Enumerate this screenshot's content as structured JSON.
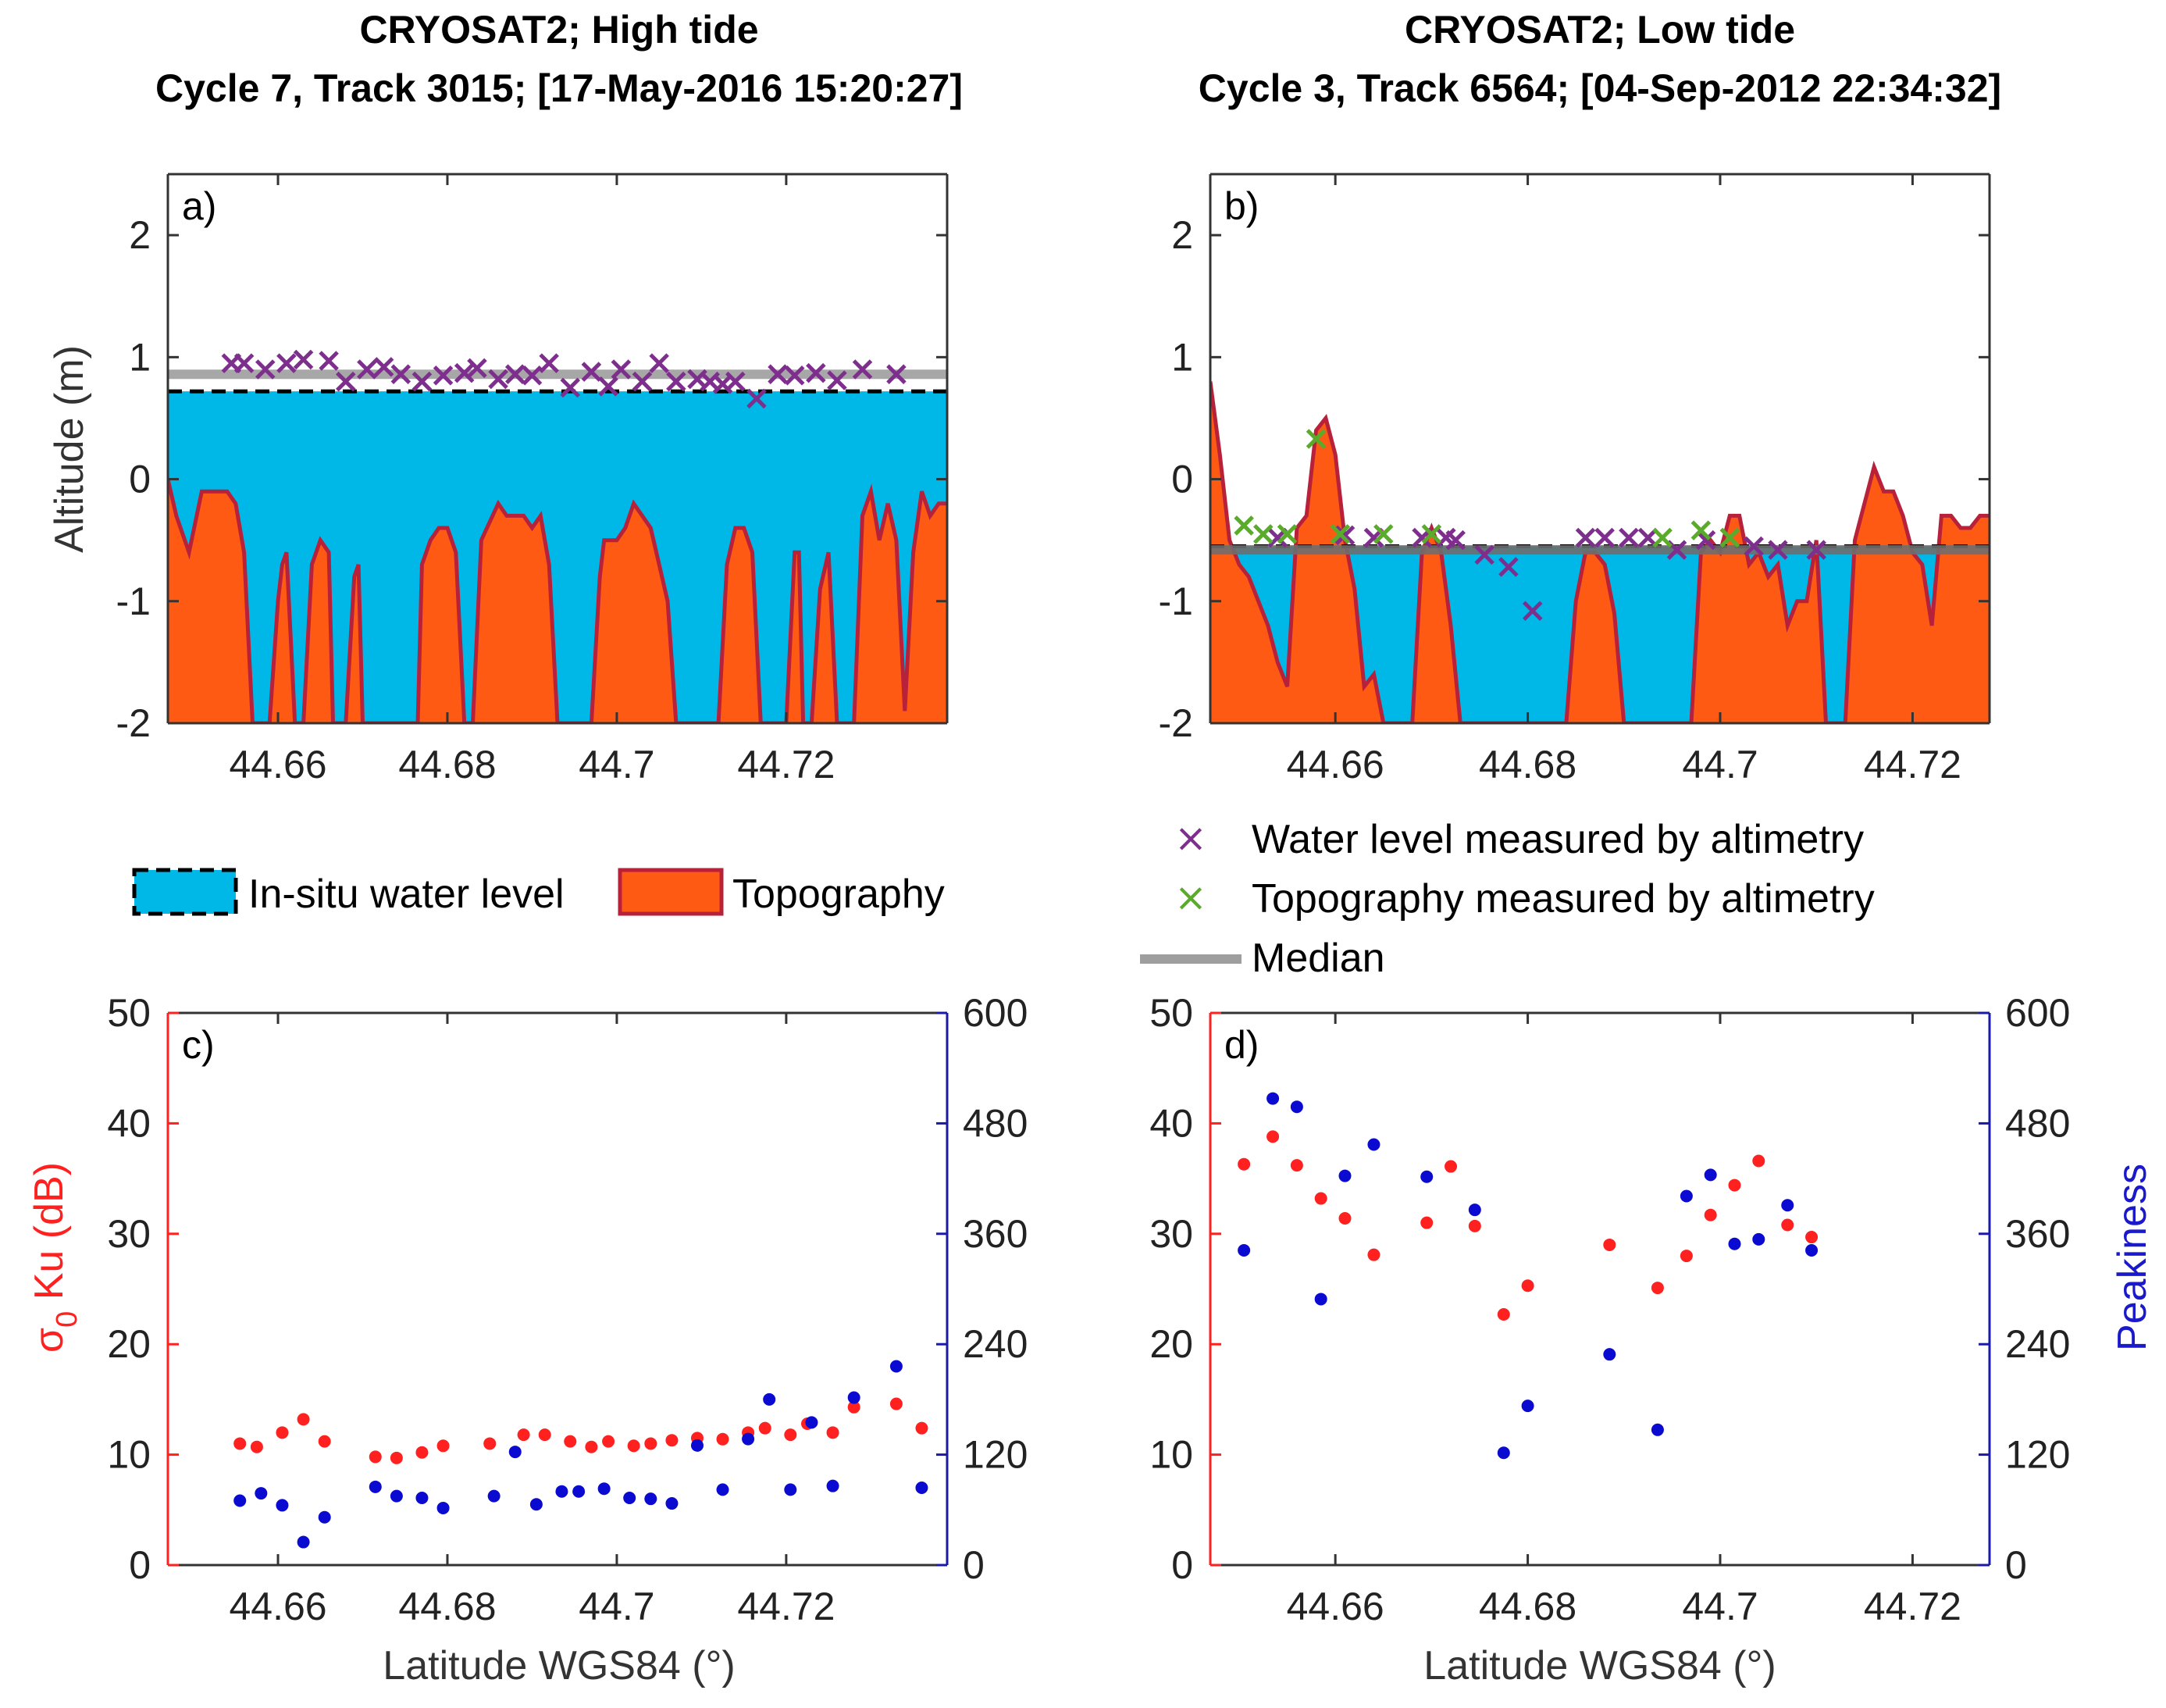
{
  "titles": {
    "a_line1": "CRYOSAT2; High tide",
    "a_line2": "Cycle 7, Track 3015; [17-May-2016 15:20:27]",
    "b_line1": "CRYOSAT2; Low tide",
    "b_line2": "Cycle 3, Track 6564; [04-Sep-2012 22:34:32]"
  },
  "labels": {
    "altitude": "Altitude (m)",
    "sigma_symbol": "σ",
    "sigma_sub": "0",
    "sigma_rest": " Ku (dB)",
    "peakiness": "Peakiness",
    "latitude": "Latitude WGS84 (°)"
  },
  "legend_a": {
    "insitu": "In-situ water level",
    "topography": "Topography"
  },
  "legend_b": {
    "water": "Water level measured by altimetry",
    "topo": "Topography measured by altimetry",
    "median": "Median"
  },
  "colors": {
    "water": "#00b8e8",
    "topo_fill": "#ff5a14",
    "topo_line": "#b8213a",
    "water_marker": "#7e2f8e",
    "topo_marker": "#5aaa2c",
    "median": "#9e9e9e",
    "sigma": "#ff2020",
    "peakiness": "#0a0ad0",
    "right_axis": "#1a1aa6"
  },
  "chart_data": [
    {
      "panel": "a)",
      "type": "area",
      "title": "CRYOSAT2; High tide",
      "subtitle": "Cycle 7, Track 3015; [17-May-2016 15:20:27]",
      "ylabel": "Altitude (m)",
      "xlim": [
        44.647,
        44.739
      ],
      "ylim": [
        -2,
        2.5
      ],
      "xticks": [
        "44.66",
        "44.68",
        "44.7",
        "44.72"
      ],
      "yticks": [
        "-2",
        "-1",
        "0",
        "1",
        "2"
      ],
      "insitu_water_level": 0.72,
      "median": 0.86,
      "topography": {
        "x": [
          44.647,
          44.648,
          44.6495,
          44.651,
          44.653,
          44.654,
          44.655,
          44.656,
          44.657,
          44.658,
          44.659,
          44.66,
          44.6605,
          44.661,
          44.662,
          44.663,
          44.664,
          44.665,
          44.666,
          44.6665,
          44.668,
          44.669,
          44.6695,
          44.67,
          44.671,
          44.672,
          44.673,
          44.674,
          44.675,
          44.676,
          44.6765,
          44.677,
          44.678,
          44.679,
          44.68,
          44.681,
          44.682,
          44.683,
          44.684,
          44.686,
          44.687,
          44.688,
          44.689,
          44.69,
          44.691,
          44.692,
          44.693,
          44.694,
          44.695,
          44.696,
          44.697,
          44.698,
          44.6985,
          44.699,
          44.7,
          44.701,
          44.702,
          44.703,
          44.704,
          44.705,
          44.706,
          44.707,
          44.708,
          44.709,
          44.71,
          44.711,
          44.712,
          44.713,
          44.714,
          44.715,
          44.716,
          44.717,
          44.718,
          44.719,
          44.72,
          44.721,
          44.7215,
          44.722,
          44.723,
          44.724,
          44.725,
          44.726,
          44.727,
          44.728,
          44.729,
          44.73,
          44.731,
          44.732,
          44.733,
          44.734,
          44.735,
          44.736,
          44.737,
          44.738,
          44.739
        ],
        "y": [
          0.0,
          -0.3,
          -0.6,
          -0.1,
          -0.1,
          -0.1,
          -0.2,
          -0.6,
          -2.0,
          -2.0,
          -2.0,
          -1.0,
          -0.7,
          -0.6,
          -2.0,
          -2.0,
          -0.7,
          -0.5,
          -0.6,
          -2.0,
          -2.0,
          -0.8,
          -0.7,
          -2.0,
          -2.0,
          -2.0,
          -2.0,
          -2.0,
          -2.0,
          -2.0,
          -2.0,
          -0.7,
          -0.5,
          -0.4,
          -0.4,
          -0.6,
          -2.0,
          -2.0,
          -0.5,
          -0.2,
          -0.3,
          -0.3,
          -0.3,
          -0.4,
          -0.3,
          -0.7,
          -2.0,
          -2.0,
          -2.0,
          -2.0,
          -2.0,
          -0.8,
          -0.5,
          -0.5,
          -0.5,
          -0.4,
          -0.2,
          -0.3,
          -0.4,
          -0.7,
          -1.0,
          -2.0,
          -2.0,
          -2.0,
          -2.0,
          -2.0,
          -2.0,
          -0.7,
          -0.4,
          -0.4,
          -0.6,
          -2.0,
          -2.0,
          -2.0,
          -2.0,
          -0.6,
          -0.6,
          -2.0,
          -2.0,
          -0.9,
          -0.6,
          -2.0,
          -2.0,
          -2.0,
          -0.3,
          -0.1,
          -0.5,
          -0.2,
          -0.5,
          -1.9,
          -0.6,
          -0.1,
          -0.3,
          -0.2,
          -0.2
        ]
      },
      "water_level_altimetry": {
        "x": [
          44.6545,
          44.656,
          44.6585,
          44.661,
          44.663,
          44.666,
          44.668,
          44.6705,
          44.6725,
          44.6745,
          44.677,
          44.6795,
          44.682,
          44.6835,
          44.686,
          44.688,
          44.69,
          44.692,
          44.6945,
          44.697,
          44.699,
          44.7005,
          44.703,
          44.705,
          44.707,
          44.7095,
          44.711,
          44.7125,
          44.714,
          44.7165,
          44.719,
          44.721,
          44.7235,
          44.726,
          44.729,
          44.733
        ],
        "y": [
          0.95,
          0.95,
          0.9,
          0.95,
          0.98,
          0.97,
          0.8,
          0.9,
          0.92,
          0.86,
          0.8,
          0.85,
          0.87,
          0.91,
          0.82,
          0.86,
          0.85,
          0.95,
          0.75,
          0.88,
          0.76,
          0.9,
          0.8,
          0.95,
          0.8,
          0.82,
          0.8,
          0.78,
          0.8,
          0.66,
          0.86,
          0.85,
          0.87,
          0.81,
          0.9,
          0.86
        ]
      }
    },
    {
      "panel": "b)",
      "type": "area",
      "title": "CRYOSAT2; Low tide",
      "subtitle": "Cycle 3, Track 6564; [04-Sep-2012 22:34:32]",
      "xlim": [
        44.647,
        44.728
      ],
      "ylim": [
        -2,
        2.5
      ],
      "xticks": [
        "44.66",
        "44.68",
        "44.7",
        "44.72"
      ],
      "yticks": [
        "-2",
        "-1",
        "0",
        "1",
        "2"
      ],
      "insitu_water_level": -0.55,
      "median": -0.58,
      "topography": {
        "x": [
          44.647,
          44.648,
          44.649,
          44.65,
          44.651,
          44.652,
          44.653,
          44.654,
          44.655,
          44.656,
          44.657,
          44.658,
          44.659,
          44.66,
          44.661,
          44.662,
          44.663,
          44.664,
          44.665,
          44.666,
          44.667,
          44.668,
          44.669,
          44.67,
          44.671,
          44.672,
          44.673,
          44.674,
          44.675,
          44.676,
          44.677,
          44.678,
          44.679,
          44.68,
          44.681,
          44.682,
          44.683,
          44.684,
          44.685,
          44.686,
          44.687,
          44.688,
          44.689,
          44.69,
          44.691,
          44.692,
          44.693,
          44.694,
          44.695,
          44.696,
          44.697,
          44.698,
          44.699,
          44.7,
          44.701,
          44.702,
          44.703,
          44.704,
          44.705,
          44.706,
          44.707,
          44.708,
          44.709,
          44.71,
          44.711,
          44.712,
          44.713,
          44.714,
          44.715,
          44.716,
          44.717,
          44.718,
          44.719,
          44.72,
          44.721,
          44.722,
          44.723,
          44.724,
          44.725,
          44.726,
          44.727,
          44.728
        ],
        "y": [
          0.8,
          0.2,
          -0.5,
          -0.7,
          -0.8,
          -1.0,
          -1.2,
          -1.5,
          -1.7,
          -0.4,
          -0.3,
          0.4,
          0.5,
          0.2,
          -0.5,
          -0.9,
          -1.7,
          -1.6,
          -2.0,
          -2.0,
          -2.0,
          -2.0,
          -0.6,
          -0.4,
          -0.6,
          -1.2,
          -2.0,
          -2.0,
          -2.0,
          -2.0,
          -2.0,
          -2.0,
          -2.0,
          -2.0,
          -2.0,
          -2.0,
          -2.0,
          -2.0,
          -1.0,
          -0.6,
          -0.6,
          -0.7,
          -1.1,
          -2.0,
          -2.0,
          -2.0,
          -2.0,
          -2.0,
          -2.0,
          -2.0,
          -2.0,
          -0.6,
          -0.5,
          -0.6,
          -0.3,
          -0.3,
          -0.7,
          -0.6,
          -0.8,
          -0.7,
          -1.2,
          -1.0,
          -1.0,
          -0.5,
          -2.0,
          -2.0,
          -2.0,
          -0.5,
          -0.2,
          0.1,
          -0.1,
          -0.1,
          -0.3,
          -0.6,
          -0.7,
          -1.2,
          -0.3,
          -0.3,
          -0.4,
          -0.4,
          -0.3,
          -0.3
        ]
      },
      "water_level_altimetry": {
        "x": [
          44.654,
          44.661,
          44.664,
          44.669,
          44.6715,
          44.6725,
          44.6755,
          44.678,
          44.6805,
          44.686,
          44.688,
          44.6905,
          44.6925,
          44.6955,
          44.6985,
          44.7035,
          44.706,
          44.71
        ],
        "y": [
          -0.48,
          -0.46,
          -0.48,
          -0.48,
          -0.48,
          -0.5,
          -0.62,
          -0.72,
          -1.08,
          -0.48,
          -0.48,
          -0.48,
          -0.48,
          -0.58,
          -0.5,
          -0.55,
          -0.58,
          -0.58
        ]
      },
      "topography_altimetry": {
        "x": [
          44.6505,
          44.6525,
          44.655,
          44.658,
          44.6605,
          44.665,
          44.67,
          44.694,
          44.698,
          44.701
        ],
        "y": [
          -0.38,
          -0.45,
          -0.45,
          0.33,
          -0.45,
          -0.45,
          -0.45,
          -0.48,
          -0.42,
          -0.48
        ]
      }
    },
    {
      "panel": "c)",
      "type": "scatter",
      "xlabel": "Latitude WGS84 (°)",
      "ylabel": "σ0 Ku (dB)",
      "xlim": [
        44.647,
        44.739
      ],
      "ylim": [
        0,
        50
      ],
      "y2lim": [
        0,
        600
      ],
      "xticks": [
        "44.66",
        "44.68",
        "44.7",
        "44.72"
      ],
      "yticks": [
        "0",
        "10",
        "20",
        "30",
        "40",
        "50"
      ],
      "y2ticks": [
        "0",
        "120",
        "240",
        "360",
        "480",
        "600"
      ],
      "series": [
        {
          "name": "σ0 Ku (dB)",
          "axis": "left",
          "x": [
            44.6555,
            44.6575,
            44.6605,
            44.663,
            44.6655,
            44.6715,
            44.674,
            44.677,
            44.6795,
            44.685,
            44.689,
            44.6915,
            44.6945,
            44.697,
            44.699,
            44.702,
            44.704,
            44.7065,
            44.7095,
            44.7125,
            44.7155,
            44.7175,
            44.7205,
            44.7225,
            44.7255,
            44.728,
            44.733,
            44.736
          ],
          "y": [
            11.0,
            10.7,
            12.0,
            13.2,
            11.2,
            9.8,
            9.7,
            10.2,
            10.8,
            11.0,
            11.8,
            11.8,
            11.2,
            10.7,
            11.2,
            10.8,
            11.0,
            11.3,
            11.5,
            11.4,
            12.0,
            12.4,
            11.8,
            12.8,
            12.0,
            14.3,
            14.6,
            12.4
          ]
        },
        {
          "name": "Peakiness",
          "axis": "right",
          "x": [
            44.6555,
            44.658,
            44.6605,
            44.663,
            44.6655,
            44.6715,
            44.674,
            44.677,
            44.6795,
            44.6855,
            44.688,
            44.6905,
            44.6935,
            44.6955,
            44.6985,
            44.7015,
            44.704,
            44.7065,
            44.7095,
            44.7125,
            44.7155,
            44.718,
            44.7205,
            44.723,
            44.7255,
            44.728,
            44.733,
            44.736
          ],
          "y": [
            70,
            78,
            65,
            25,
            52,
            85,
            75,
            73,
            62,
            75,
            123,
            66,
            80,
            80,
            83,
            73,
            72,
            67,
            130,
            82,
            137,
            180,
            82,
            155,
            86,
            182,
            216,
            84
          ]
        }
      ]
    },
    {
      "panel": "d)",
      "type": "scatter",
      "xlabel": "Latitude WGS84 (°)",
      "y2label": "Peakiness",
      "xlim": [
        44.647,
        44.728
      ],
      "ylim": [
        0,
        50
      ],
      "y2lim": [
        0,
        600
      ],
      "xticks": [
        "44.66",
        "44.68",
        "44.7",
        "44.72"
      ],
      "yticks": [
        "0",
        "10",
        "20",
        "30",
        "40",
        "50"
      ],
      "y2ticks": [
        "0",
        "120",
        "240",
        "360",
        "480",
        "600"
      ],
      "series": [
        {
          "name": "σ0 Ku (dB)",
          "axis": "left",
          "x": [
            44.6505,
            44.6535,
            44.656,
            44.6585,
            44.661,
            44.664,
            44.6695,
            44.672,
            44.6745,
            44.6775,
            44.68,
            44.6885,
            44.6935,
            44.6965,
            44.699,
            44.7015,
            44.704,
            44.707,
            44.7095
          ],
          "y": [
            36.3,
            38.8,
            36.2,
            33.2,
            31.4,
            28.1,
            31.0,
            36.1,
            30.7,
            22.7,
            25.3,
            29.0,
            25.1,
            28.0,
            31.7,
            34.4,
            36.6,
            30.8,
            29.7
          ]
        },
        {
          "name": "Peakiness",
          "axis": "right",
          "x": [
            44.6505,
            44.6535,
            44.656,
            44.6585,
            44.661,
            44.664,
            44.6695,
            44.6745,
            44.6775,
            44.68,
            44.6885,
            44.6935,
            44.6965,
            44.699,
            44.7015,
            44.704,
            44.707,
            44.7095
          ],
          "y": [
            342,
            507,
            498,
            289,
            423,
            457,
            422,
            386,
            122,
            173,
            229,
            147,
            401,
            424,
            349,
            354,
            391,
            342
          ]
        }
      ]
    }
  ]
}
